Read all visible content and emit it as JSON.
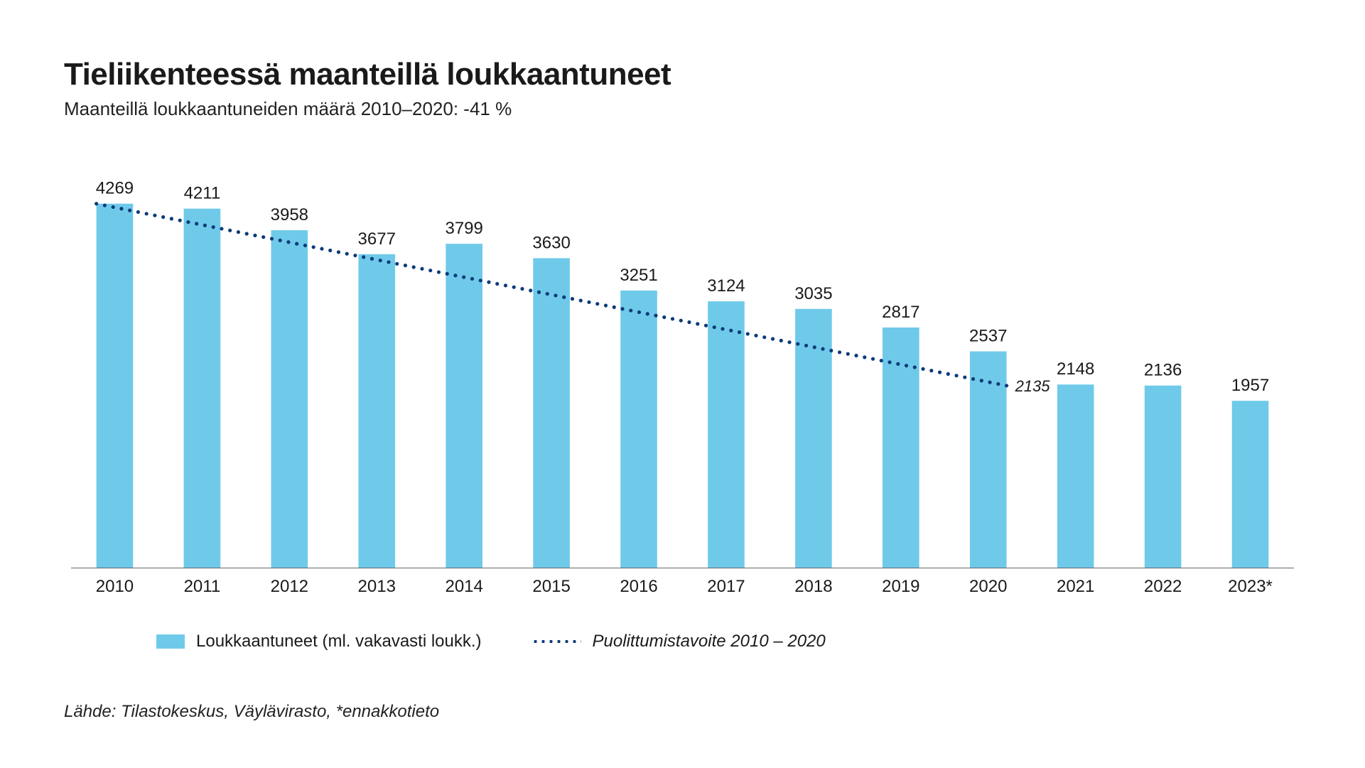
{
  "title": "Tieliikenteessä maanteillä loukkaantuneet",
  "subtitle": "Maanteillä loukkaantuneiden määrä 2010–2020: -41 %",
  "source": "Lähde: Tilastokeskus, Väylävirasto, *ennakkotieto",
  "legend": {
    "bars": "Loukkaantuneet (ml. vakavasti loukk.)",
    "dots": "Puolittumistavoite 2010 – 2020"
  },
  "chart": {
    "type": "bar",
    "categories": [
      "2010",
      "2011",
      "2012",
      "2013",
      "2014",
      "2015",
      "2016",
      "2017",
      "2018",
      "2019",
      "2020",
      "2021",
      "2022",
      "2023*"
    ],
    "values": [
      4269,
      4211,
      3958,
      3677,
      3799,
      3630,
      3251,
      3124,
      3035,
      2817,
      2537,
      2148,
      2136,
      1957
    ],
    "trend": {
      "start_index": 0,
      "end_index": 10,
      "start_value": 4269,
      "end_value": 2135,
      "end_label": "2135",
      "color": "#0c3b7a",
      "dot_radius": 2.6,
      "dot_gap": 12
    },
    "bar_color": "#6fcaea",
    "axis_color": "#666666",
    "label_color": "#1a1a1a",
    "background_color": "#ffffff",
    "ylim": [
      0,
      4500
    ],
    "bar_width_ratio": 0.42,
    "value_label_fontsize": 24,
    "tick_label_fontsize": 24,
    "title_fontsize": 44,
    "subtitle_fontsize": 26,
    "trend_label_fontsize": 22
  }
}
